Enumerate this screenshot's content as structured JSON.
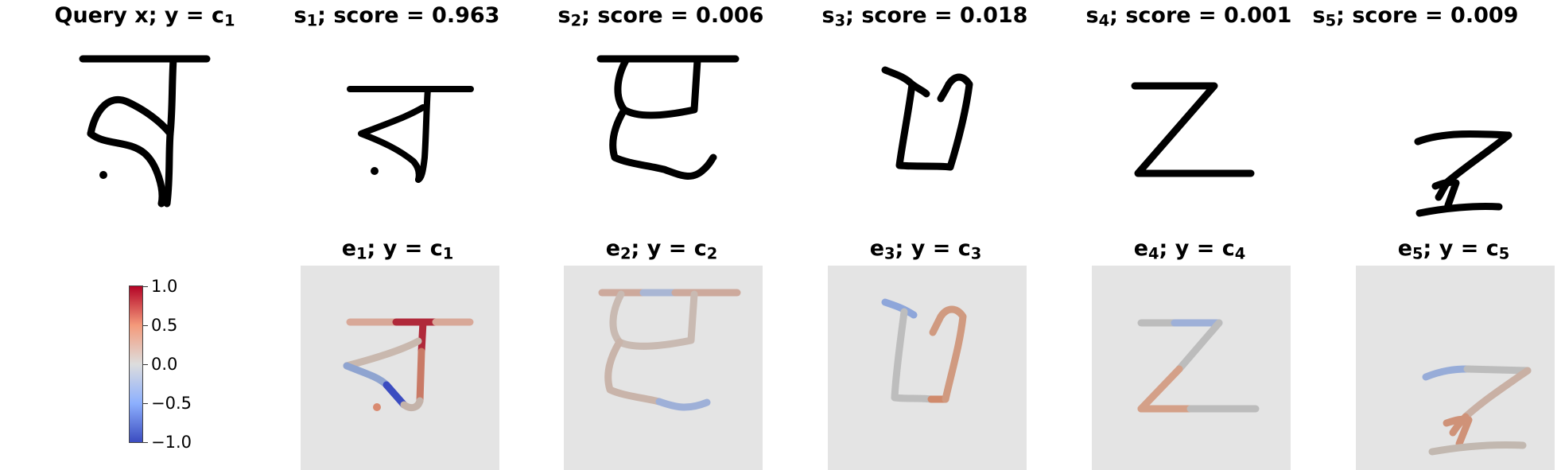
{
  "titles": {
    "query": {
      "pre": "Query x; y = c",
      "sub": "1"
    },
    "s1": {
      "pre": "s",
      "sub": "1",
      "post": "; score = 0.963"
    },
    "s2": {
      "pre": "s",
      "sub": "2",
      "post": "; score = 0.006"
    },
    "s3": {
      "pre": "s",
      "sub": "3",
      "post": "; score = 0.018"
    },
    "s4": {
      "pre": "s",
      "sub": "4",
      "post": "; score = 0.001"
    },
    "s5": {
      "pre": "s",
      "sub": "5",
      "post": "; score = 0.009"
    },
    "e1": {
      "pre": "e",
      "sub": "1",
      "mid": "; y = c",
      "sub2": "1"
    },
    "e2": {
      "pre": "e",
      "sub": "2",
      "mid": "; y = c",
      "sub2": "2"
    },
    "e3": {
      "pre": "e",
      "sub": "3",
      "mid": "; y = c",
      "sub2": "3"
    },
    "e4": {
      "pre": "e",
      "sub": "4",
      "mid": "; y = c",
      "sub2": "4"
    },
    "e5": {
      "pre": "e",
      "sub": "5",
      "mid": "; y = c",
      "sub2": "5"
    }
  },
  "colorbar": {
    "ticks": [
      "1.0",
      "0.5",
      "0.0",
      "−0.5",
      "−1.0"
    ],
    "colors": {
      "low": "#3b4cc0",
      "mid": "#dddddd",
      "high": "#b40426"
    }
  },
  "tile_background": "#e4e4e4"
}
